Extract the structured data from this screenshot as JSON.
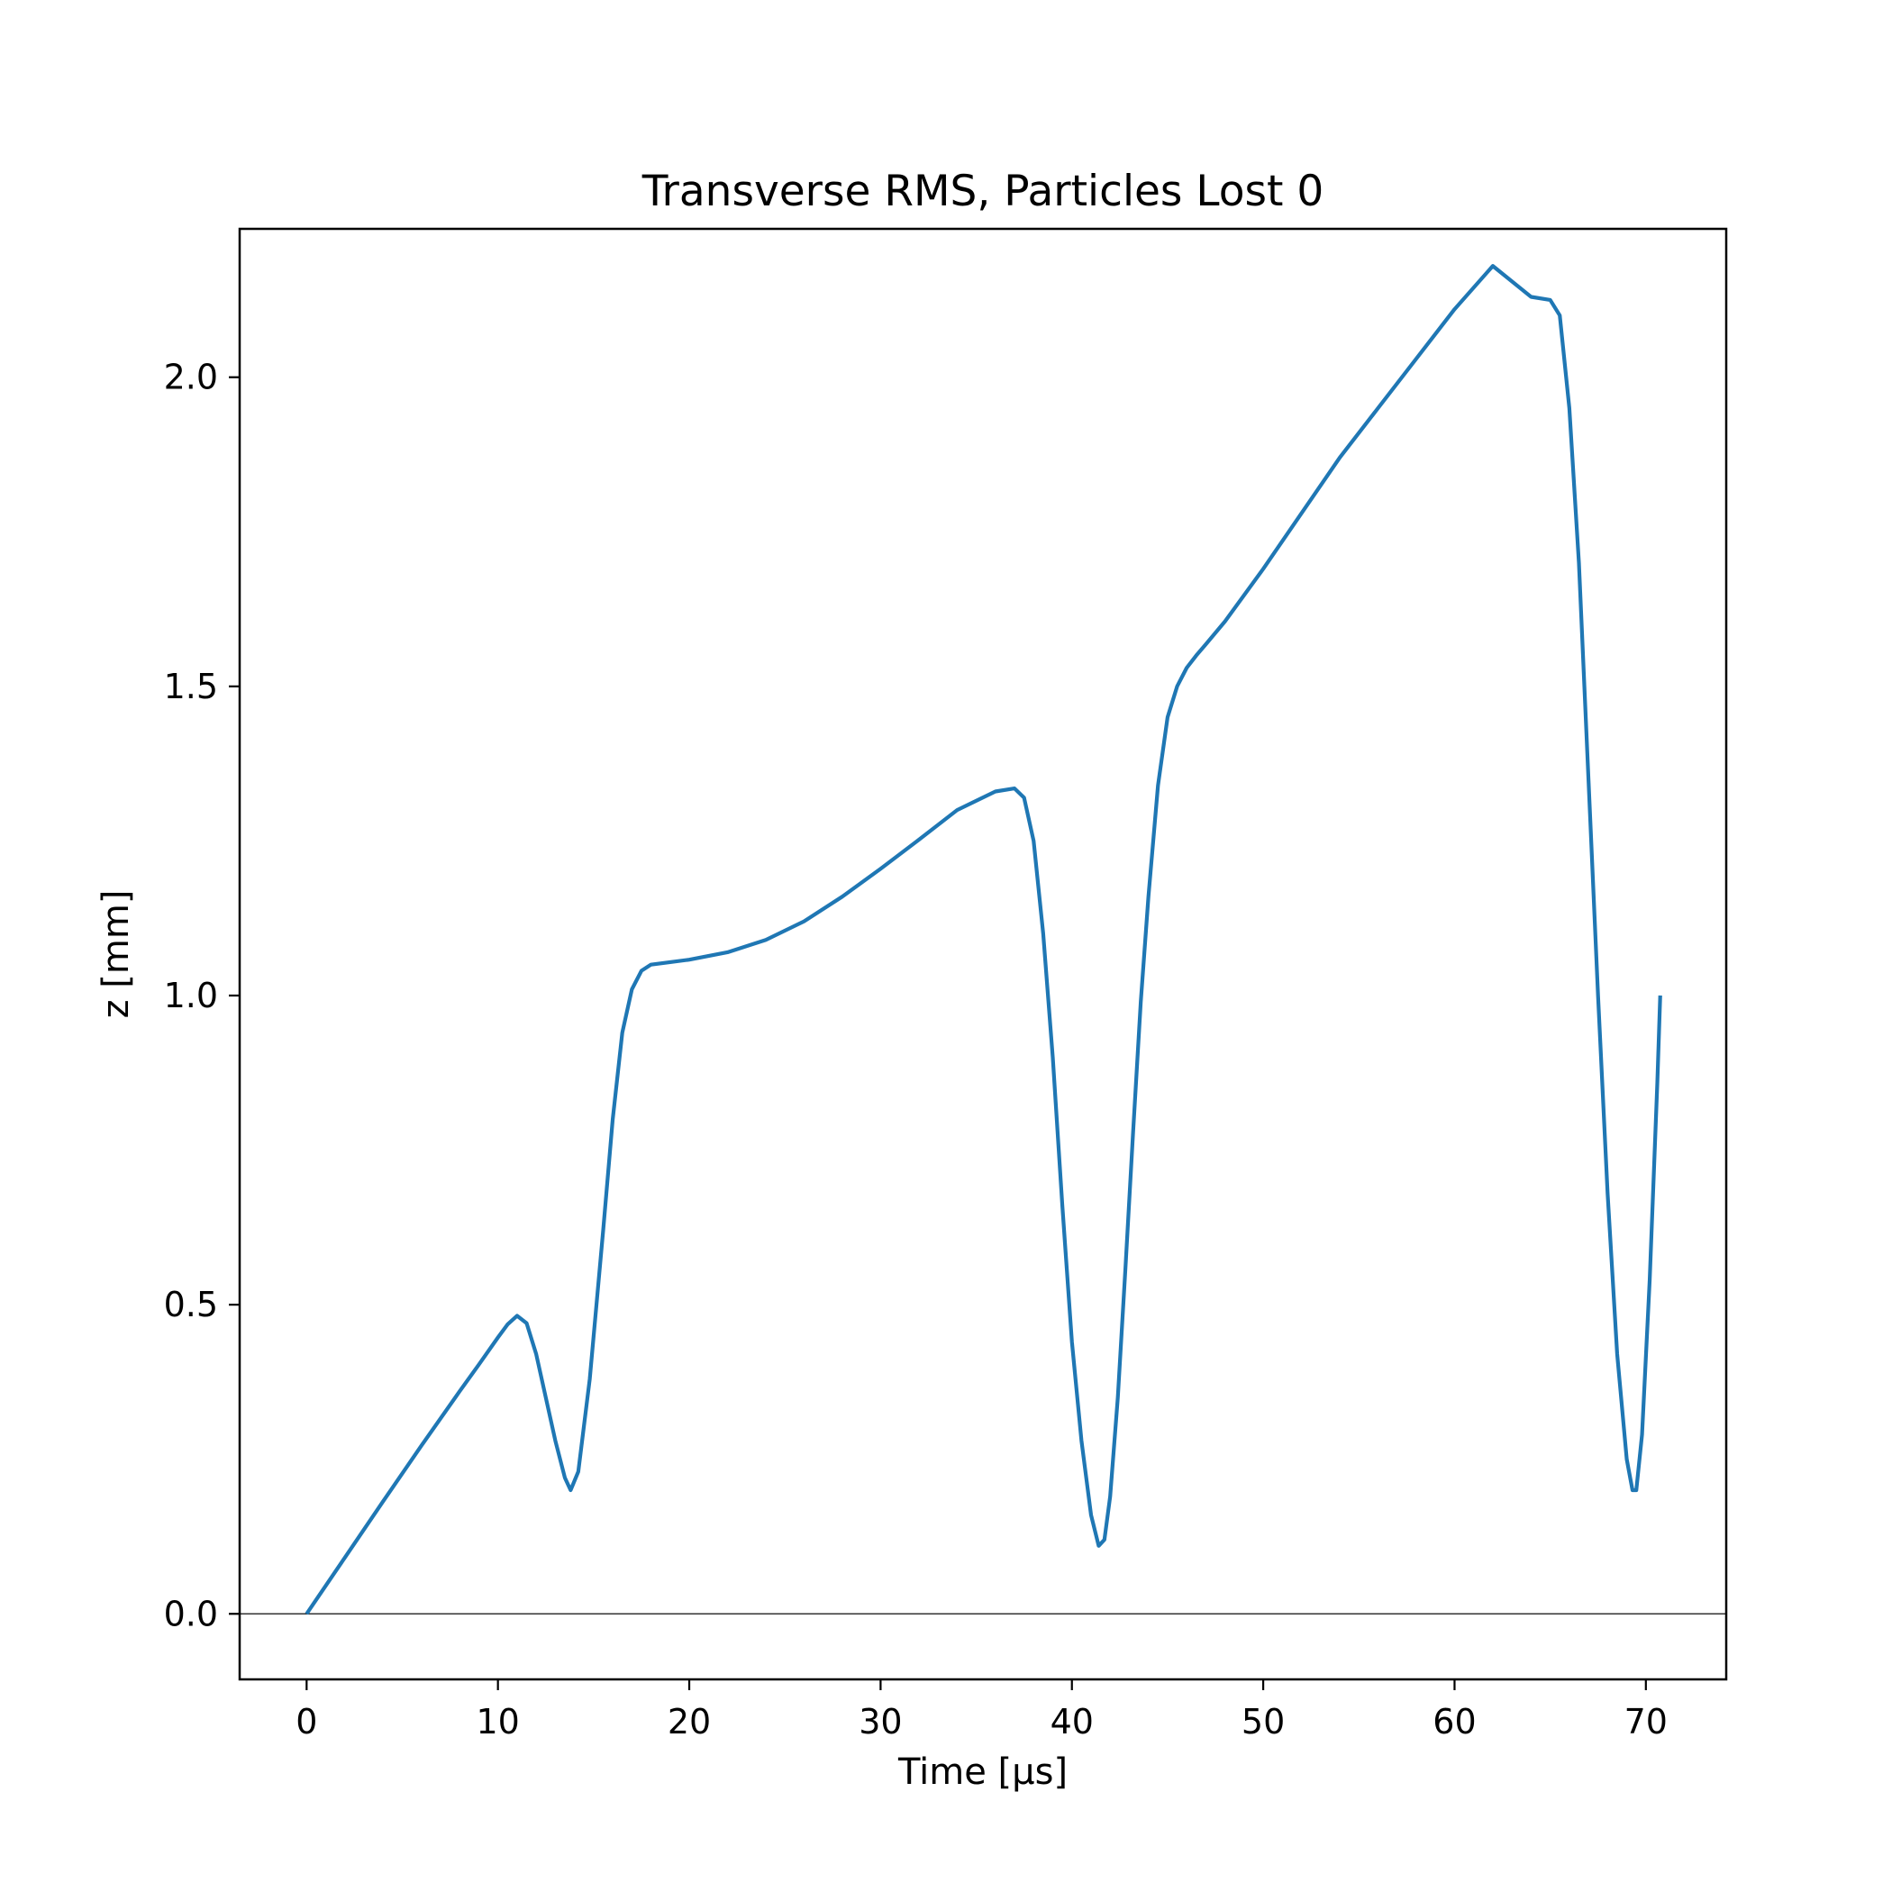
{
  "chart_data": {
    "type": "line",
    "title": "Transverse RMS, Particles Lost 0",
    "xlabel": "Time [μs]",
    "ylabel": "z [mm]",
    "xlim": [
      -3.5,
      74.2
    ],
    "ylim": [
      -0.106,
      2.24
    ],
    "xticks": [
      0,
      10,
      20,
      30,
      40,
      50,
      60,
      70
    ],
    "xtick_labels": [
      "0",
      "10",
      "20",
      "30",
      "40",
      "50",
      "60",
      "70"
    ],
    "yticks": [
      0.0,
      0.5,
      1.0,
      1.5,
      2.0
    ],
    "ytick_labels": [
      "0.0",
      "0.5",
      "1.0",
      "1.5",
      "2.0"
    ],
    "grid": false,
    "reference_line": {
      "y": 0.0,
      "color": "#333333"
    },
    "series": [
      {
        "color": "#1f77b4",
        "x": [
          0,
          2,
          4,
          6,
          8,
          9,
          10,
          10.5,
          11,
          11.5,
          12,
          12.5,
          13,
          13.5,
          13.8,
          14.2,
          14.8,
          15.5,
          16,
          16.5,
          17,
          17.5,
          18,
          18.5,
          19,
          20,
          22,
          24,
          26,
          28,
          30,
          32,
          34,
          36,
          37,
          37.5,
          38,
          38.5,
          39,
          39.5,
          40,
          40.5,
          41,
          41.4,
          41.7,
          42,
          42.4,
          42.8,
          43.2,
          43.6,
          44,
          44.5,
          45,
          45.5,
          46,
          46.5,
          47,
          48,
          50,
          52,
          54,
          56,
          58,
          60,
          62,
          64,
          65,
          65.5,
          66,
          66.5,
          67,
          67.5,
          68,
          68.5,
          69,
          69.3,
          69.5,
          69.8,
          70.2,
          70.6,
          70.75
        ],
        "y": [
          0.0,
          0.091,
          0.182,
          0.272,
          0.36,
          0.403,
          0.447,
          0.468,
          0.482,
          0.47,
          0.42,
          0.35,
          0.28,
          0.22,
          0.2,
          0.23,
          0.38,
          0.62,
          0.8,
          0.94,
          1.01,
          1.04,
          1.05,
          1.052,
          1.054,
          1.058,
          1.07,
          1.09,
          1.12,
          1.16,
          1.205,
          1.252,
          1.3,
          1.33,
          1.335,
          1.32,
          1.25,
          1.1,
          0.9,
          0.66,
          0.44,
          0.28,
          0.16,
          0.11,
          0.12,
          0.19,
          0.35,
          0.56,
          0.78,
          0.99,
          1.16,
          1.34,
          1.45,
          1.5,
          1.53,
          1.55,
          1.568,
          1.605,
          1.69,
          1.78,
          1.87,
          1.95,
          2.03,
          2.11,
          2.18,
          2.13,
          2.125,
          2.1,
          1.95,
          1.7,
          1.35,
          1.0,
          0.68,
          0.42,
          0.25,
          0.2,
          0.2,
          0.29,
          0.54,
          0.86,
          1.0
        ]
      }
    ]
  }
}
